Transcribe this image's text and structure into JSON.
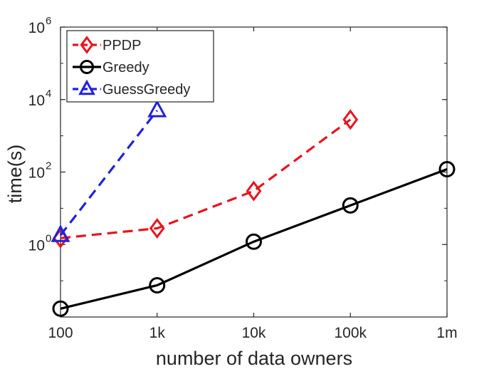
{
  "chart_data": {
    "type": "line",
    "xlabel": "number of data owners",
    "ylabel": "time(s)",
    "x_scale": "log",
    "y_scale": "log",
    "xlim": [
      100,
      1000000
    ],
    "ylim": [
      0.01,
      1000000
    ],
    "x_ticks": [
      {
        "value": 100,
        "label": "100"
      },
      {
        "value": 1000,
        "label": "1k"
      },
      {
        "value": 10000,
        "label": "10k"
      },
      {
        "value": 100000,
        "label": "100k"
      },
      {
        "value": 1000000,
        "label": "1m"
      }
    ],
    "y_ticks": [
      {
        "value": 1,
        "base": "10",
        "exp": "0"
      },
      {
        "value": 100,
        "base": "10",
        "exp": "2"
      },
      {
        "value": 10000,
        "base": "10",
        "exp": "4"
      },
      {
        "value": 1000000,
        "base": "10",
        "exp": "6"
      }
    ],
    "grid": false,
    "legend_position": "top-left",
    "series": [
      {
        "name": "PPDP",
        "color": "#e8141c",
        "dash": "dashed",
        "marker": "diamond",
        "x": [
          100,
          1000,
          10000,
          100000
        ],
        "y": [
          1.5,
          2.8,
          30,
          2800
        ]
      },
      {
        "name": "Greedy",
        "color": "#000000",
        "dash": "solid",
        "marker": "circle",
        "x": [
          100,
          1000,
          10000,
          100000,
          1000000
        ],
        "y": [
          0.017,
          0.075,
          1.2,
          12,
          120
        ]
      },
      {
        "name": "GuessGreedy",
        "color": "#2020e0",
        "dash": "dashed",
        "marker": "triangle",
        "x": [
          100,
          1000
        ],
        "y": [
          1.8,
          5000
        ]
      }
    ]
  }
}
